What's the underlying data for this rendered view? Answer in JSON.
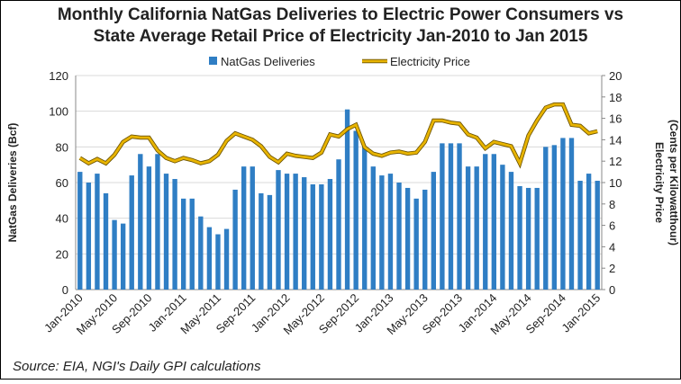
{
  "chart_data": {
    "type": "bar_line",
    "title": [
      "Monthly California NatGas Deliveries to Electric Power Consumers vs",
      "State Average Retail Price of Electricity Jan-2010 to Jan 2015"
    ],
    "ylabel": "NatGas Deliveries (Bcf)",
    "y2label": [
      "Electricity Price",
      "(Cents per Kilowatthour)"
    ],
    "source": "Source: EIA, NGI's Daily GPI calculations",
    "categories": [
      "Jan-2010",
      null,
      null,
      null,
      "May-2010",
      null,
      null,
      null,
      "Sep-2010",
      null,
      null,
      null,
      "Jan-2011",
      null,
      null,
      null,
      "May-2011",
      null,
      null,
      null,
      "Sep-2011",
      null,
      null,
      null,
      "Jan-2012",
      null,
      null,
      null,
      "May-2012",
      null,
      null,
      null,
      "Sep-2012",
      null,
      null,
      null,
      "Jan-2013",
      null,
      null,
      null,
      "May-2013",
      null,
      null,
      null,
      "Sep-2013",
      null,
      null,
      null,
      "Jan-2014",
      null,
      null,
      null,
      "May-2014",
      null,
      null,
      null,
      "Sep-2014",
      null,
      null,
      null,
      "Jan-2015"
    ],
    "series": [
      {
        "name": "NatGas Deliveries",
        "kind": "bar",
        "color": "#2f7ec4",
        "values": [
          66,
          60,
          65,
          54,
          39,
          37,
          64,
          76,
          69,
          76,
          65,
          62,
          51,
          51,
          41,
          35,
          31,
          34,
          56,
          69,
          69,
          54,
          53,
          67,
          65,
          65,
          63,
          59,
          59,
          62,
          73,
          101,
          89,
          80,
          69,
          64,
          65,
          60,
          57,
          51,
          56,
          66,
          82,
          82,
          82,
          69,
          69,
          76,
          76,
          70,
          66,
          58,
          57,
          57,
          80,
          81,
          85,
          85,
          61,
          65,
          61
        ]
      },
      {
        "name": "Electricity Price",
        "kind": "line",
        "axis": "y2",
        "color": "#e8b400",
        "values": [
          12.3,
          11.8,
          12.2,
          11.8,
          12.6,
          13.8,
          14.3,
          14.2,
          14.2,
          13.0,
          12.3,
          12.0,
          12.3,
          12.1,
          11.8,
          12.0,
          12.6,
          13.9,
          14.6,
          14.3,
          14.0,
          13.4,
          12.4,
          11.9,
          12.7,
          12.5,
          12.4,
          12.3,
          12.8,
          14.5,
          14.3,
          15.0,
          15.4,
          13.3,
          12.7,
          12.5,
          12.8,
          12.9,
          12.7,
          12.8,
          13.8,
          15.8,
          15.8,
          15.6,
          15.5,
          14.5,
          14.2,
          13.2,
          13.8,
          13.6,
          13.4,
          11.8,
          14.4,
          15.8,
          17.0,
          17.3,
          17.3,
          15.4,
          15.3,
          14.6,
          14.8
        ]
      }
    ],
    "ylim": [
      0,
      120
    ],
    "yticks": [
      0,
      20,
      40,
      60,
      80,
      100,
      120
    ],
    "y2lim": [
      0,
      20
    ],
    "y2ticks": [
      0,
      2,
      4,
      6,
      8,
      10,
      12,
      14,
      16,
      18,
      20
    ],
    "grid": true
  }
}
